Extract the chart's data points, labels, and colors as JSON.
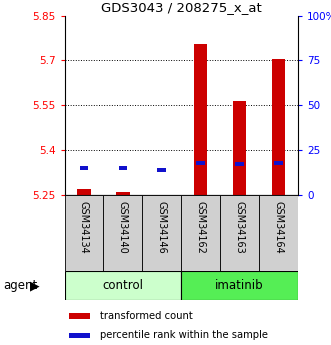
{
  "title": "GDS3043 / 208275_x_at",
  "samples": [
    "GSM34134",
    "GSM34140",
    "GSM34146",
    "GSM34162",
    "GSM34163",
    "GSM34164"
  ],
  "transformed_counts": [
    5.27,
    5.26,
    5.245,
    5.755,
    5.565,
    5.705
  ],
  "percentile_ranks": [
    15,
    15,
    14,
    18,
    17,
    18
  ],
  "ymin": 5.25,
  "ymax": 5.85,
  "y_ticks": [
    5.25,
    5.4,
    5.55,
    5.7,
    5.85
  ],
  "y_tick_labels": [
    "5.25",
    "5.4",
    "5.55",
    "5.7",
    "5.85"
  ],
  "right_y_ticks": [
    0,
    25,
    50,
    75,
    100
  ],
  "right_y_labels": [
    "0",
    "25",
    "50",
    "75",
    "100%"
  ],
  "bar_color_red": "#cc0000",
  "bar_color_blue": "#1111cc",
  "bar_width": 0.35,
  "blue_bar_width": 0.22,
  "control_color": "#ccffcc",
  "imatinib_color": "#55ee55",
  "sample_box_color": "#d0d0d0",
  "legend_red": "transformed count",
  "legend_blue": "percentile rank within the sample"
}
